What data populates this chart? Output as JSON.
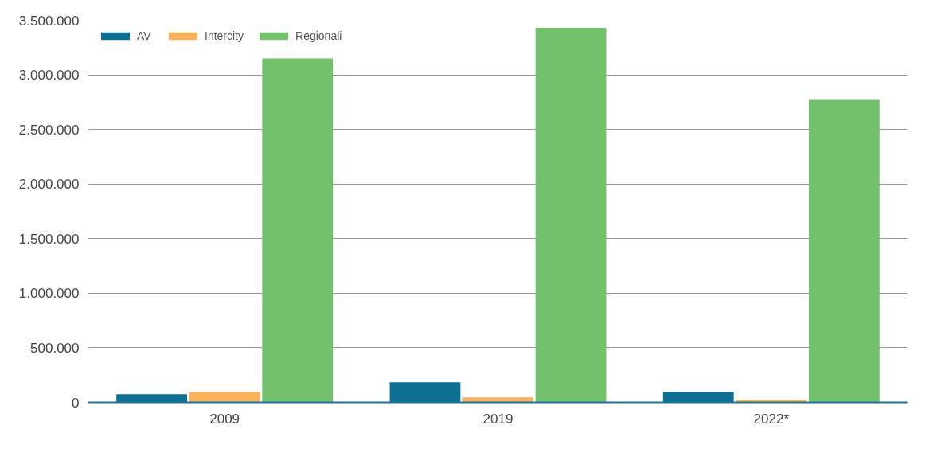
{
  "chart_data": {
    "type": "bar",
    "categories": [
      "2009",
      "2019",
      "2022*"
    ],
    "series": [
      {
        "name": "AV",
        "color": "#0e6f94",
        "values": [
          75000,
          185000,
          95000
        ]
      },
      {
        "name": "Intercity",
        "color": "#f9b25a",
        "values": [
          95000,
          45000,
          25000
        ]
      },
      {
        "name": "Regionali",
        "color": "#72c06b",
        "values": [
          3150000,
          3430000,
          2770000
        ]
      }
    ],
    "ylim": [
      0,
      3500000
    ],
    "yticks": [
      {
        "value": 0,
        "label": "0"
      },
      {
        "value": 500000,
        "label": "500.000"
      },
      {
        "value": 1000000,
        "label": "1.000.000"
      },
      {
        "value": 1500000,
        "label": "1.500.000"
      },
      {
        "value": 2000000,
        "label": "2.000.000"
      },
      {
        "value": 2500000,
        "label": "2.500.000"
      },
      {
        "value": 3000000,
        "label": "3.000.000"
      },
      {
        "value": 3500000,
        "label": "3.500.000"
      }
    ],
    "grid": "y",
    "legend": "top left"
  }
}
